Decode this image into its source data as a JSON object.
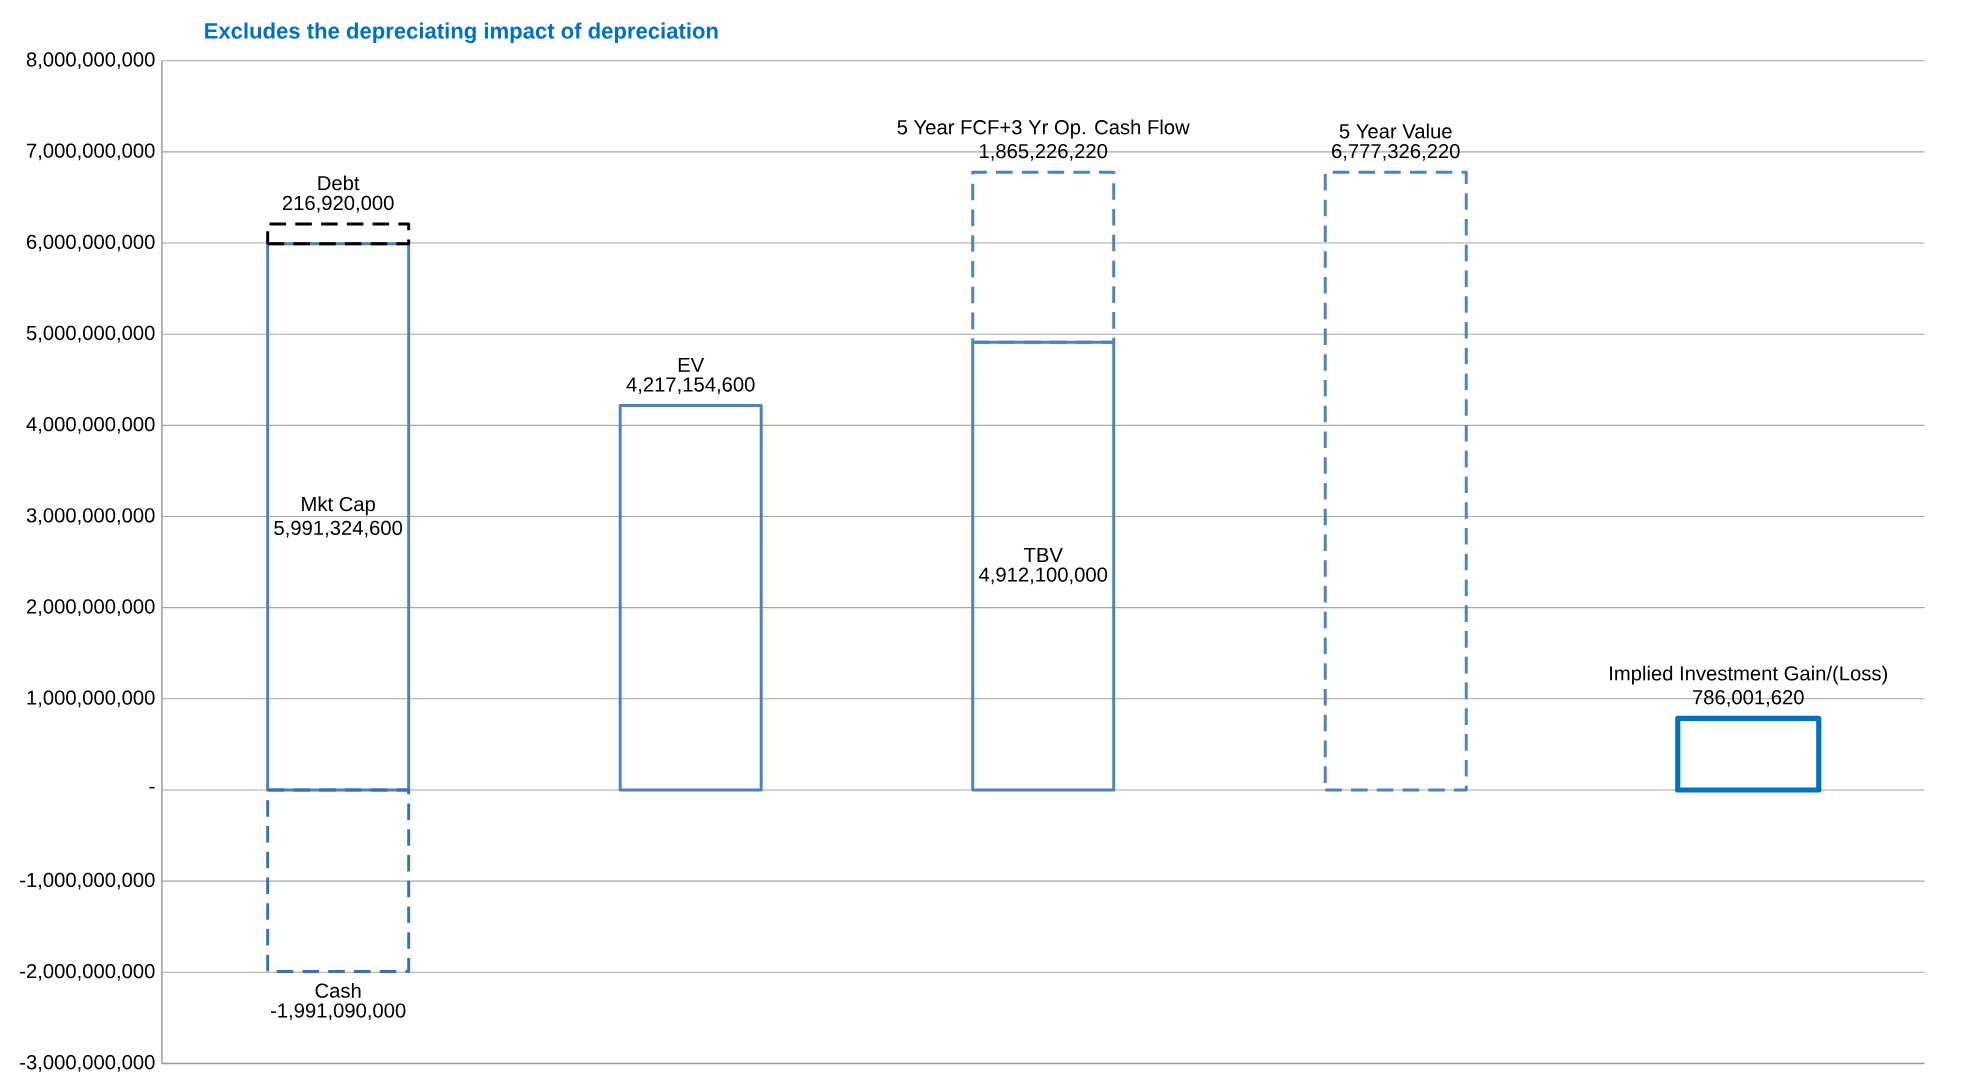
{
  "chart_data": {
    "type": "bar",
    "title": "Excludes the depreciating impact of depreciation",
    "categories": [
      null,
      null,
      null,
      null,
      null
    ],
    "series": [
      {
        "name": "Mkt Cap",
        "color": "#4f81bd",
        "line_style": "solid",
        "values": [
          5991324600,
          null,
          null,
          null,
          null
        ],
        "value_labels": [
          "5,991,324,600",
          null,
          null,
          null,
          null
        ]
      },
      {
        "name": "Debt",
        "color": "#000000",
        "line_style": "dashed",
        "values": [
          216920000,
          null,
          null,
          null,
          null
        ],
        "base": [
          5991324600,
          null,
          null,
          null,
          null
        ],
        "value_labels": [
          "216,920,000",
          null,
          null,
          null,
          null
        ]
      },
      {
        "name": "Cash",
        "color": "#3a70b8",
        "line_style": "dashed",
        "values": [
          -1991090000,
          null,
          null,
          null,
          null
        ],
        "value_labels": [
          "-1,991,090,000",
          null,
          null,
          null,
          null
        ]
      },
      {
        "name": "EV",
        "color": "#4f81bd",
        "line_style": "solid",
        "values": [
          null,
          4217154600,
          null,
          null,
          null
        ],
        "value_labels": [
          null,
          "4,217,154,600",
          null,
          null,
          null
        ]
      },
      {
        "name": "TBV",
        "color": "#4f81bd",
        "line_style": "solid",
        "values": [
          null,
          null,
          4912100000,
          null,
          null
        ],
        "value_labels": [
          null,
          null,
          "4,912,100,000",
          null,
          null
        ]
      },
      {
        "name": "5 Year FCF+3 Yr Op. Cash Flow",
        "color": "#4f81bd",
        "line_style": "dashed",
        "values": [
          null,
          null,
          1865226220,
          null,
          null
        ],
        "base": [
          null,
          null,
          4912100000,
          null,
          null
        ],
        "value_labels": [
          null,
          null,
          "1,865,226,220",
          null,
          null
        ]
      },
      {
        "name": "5 Year Value",
        "color": "#4f81bd",
        "line_style": "dashed",
        "values": [
          null,
          null,
          null,
          6777326220,
          null
        ],
        "value_labels": [
          null,
          null,
          null,
          "6,777,326,220",
          null
        ]
      },
      {
        "name": "Implied Investment Gain/(Loss)",
        "color": "#0070c0",
        "line_style": "solid",
        "values": [
          null,
          null,
          null,
          null,
          786001620
        ],
        "value_labels": [
          null,
          null,
          null,
          null,
          "786,001,620"
        ]
      }
    ],
    "ylim": [
      -3000000000,
      8000000000
    ],
    "yticks": [
      {
        "value": -3000000000,
        "label": "-3,000,000,000"
      },
      {
        "value": -2000000000,
        "label": "-2,000,000,000"
      },
      {
        "value": -1000000000,
        "label": "-1,000,000,000"
      },
      {
        "value": 0,
        "label": "-"
      },
      {
        "value": 1000000000,
        "label": "1,000,000,000"
      },
      {
        "value": 2000000000,
        "label": "2,000,000,000"
      },
      {
        "value": 3000000000,
        "label": "3,000,000,000"
      },
      {
        "value": 4000000000,
        "label": "4,000,000,000"
      },
      {
        "value": 5000000000,
        "label": "5,000,000,000"
      },
      {
        "value": 6000000000,
        "label": "6,000,000,000"
      },
      {
        "value": 7000000000,
        "label": "7,000,000,000"
      },
      {
        "value": 8000000000,
        "label": "8,000,000,000"
      }
    ],
    "grid": "y",
    "tick_labels": "y"
  }
}
